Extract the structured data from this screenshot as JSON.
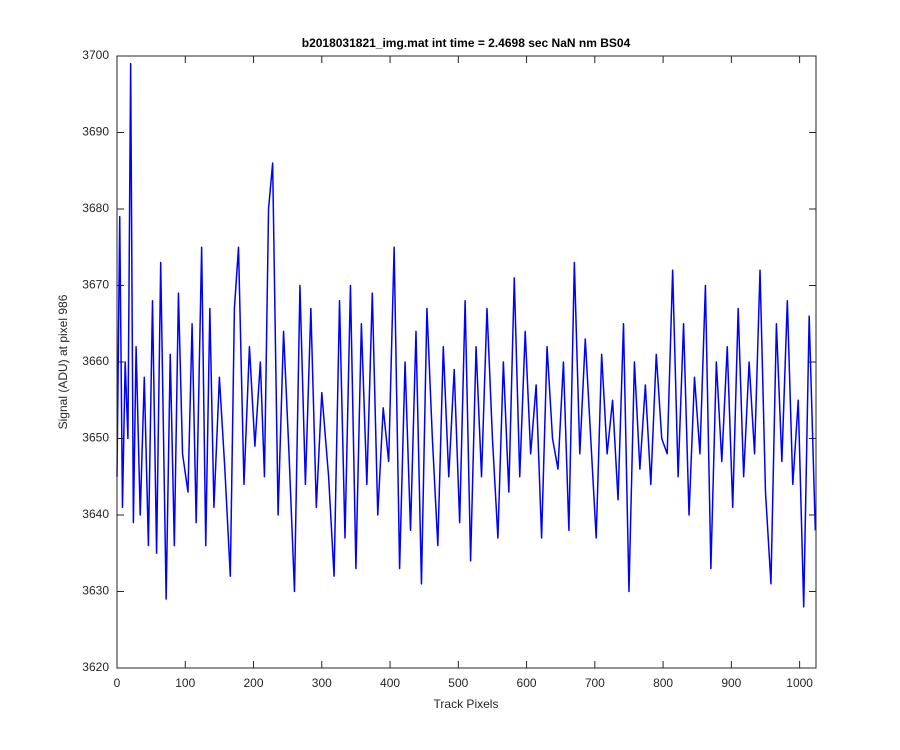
{
  "chart_data": {
    "type": "line",
    "title": "b2018031821_img.mat int time = 2.4698 sec  NaN nm BS04",
    "x_label": "Track Pixels",
    "y_label": "Signal (ADU) at pixel 986",
    "xlim": [
      0,
      1024
    ],
    "ylim": [
      3620,
      3700
    ],
    "xticks": [
      0,
      100,
      200,
      300,
      400,
      500,
      600,
      700,
      800,
      900,
      1000
    ],
    "yticks": [
      3620,
      3630,
      3640,
      3650,
      3660,
      3670,
      3680,
      3690,
      3700
    ],
    "grid": false,
    "series": [
      {
        "color": "#0000ff",
        "x": [
          0,
          4,
          8,
          12,
          16,
          20,
          24,
          28,
          34,
          40,
          46,
          52,
          58,
          64,
          72,
          78,
          84,
          90,
          96,
          104,
          110,
          116,
          124,
          130,
          136,
          142,
          150,
          158,
          166,
          172,
          178,
          186,
          194,
          202,
          210,
          216,
          222,
          228,
          236,
          244,
          252,
          260,
          268,
          276,
          284,
          292,
          300,
          310,
          318,
          326,
          334,
          342,
          350,
          358,
          366,
          374,
          382,
          390,
          398,
          406,
          414,
          422,
          430,
          438,
          446,
          454,
          462,
          470,
          478,
          486,
          494,
          502,
          510,
          518,
          526,
          534,
          542,
          550,
          558,
          566,
          574,
          582,
          590,
          598,
          606,
          614,
          622,
          630,
          638,
          646,
          654,
          662,
          670,
          678,
          686,
          694,
          702,
          710,
          718,
          726,
          734,
          742,
          750,
          758,
          766,
          774,
          782,
          790,
          798,
          806,
          814,
          822,
          830,
          838,
          846,
          854,
          862,
          870,
          878,
          886,
          894,
          902,
          910,
          918,
          926,
          934,
          942,
          950,
          958,
          966,
          974,
          982,
          990,
          998,
          1006,
          1014,
          1023
        ],
        "values": [
          3645,
          3679,
          3641,
          3660,
          3650,
          3699,
          3639,
          3662,
          3640,
          3658,
          3636,
          3668,
          3635,
          3673,
          3629,
          3661,
          3636,
          3669,
          3648,
          3643,
          3665,
          3639,
          3675,
          3636,
          3667,
          3641,
          3658,
          3646,
          3632,
          3667,
          3675,
          3644,
          3662,
          3649,
          3660,
          3645,
          3680,
          3686,
          3640,
          3664,
          3648,
          3630,
          3670,
          3644,
          3667,
          3641,
          3656,
          3645,
          3632,
          3668,
          3637,
          3670,
          3633,
          3665,
          3644,
          3669,
          3640,
          3654,
          3647,
          3675,
          3633,
          3660,
          3638,
          3664,
          3631,
          3667,
          3650,
          3636,
          3662,
          3645,
          3659,
          3639,
          3668,
          3634,
          3662,
          3645,
          3667,
          3650,
          3637,
          3660,
          3643,
          3671,
          3645,
          3664,
          3648,
          3657,
          3637,
          3662,
          3650,
          3646,
          3660,
          3638,
          3673,
          3648,
          3663,
          3650,
          3637,
          3661,
          3648,
          3655,
          3642,
          3665,
          3630,
          3660,
          3646,
          3657,
          3644,
          3661,
          3650,
          3648,
          3672,
          3645,
          3665,
          3640,
          3658,
          3648,
          3670,
          3633,
          3660,
          3647,
          3662,
          3641,
          3667,
          3645,
          3660,
          3648,
          3672,
          3643,
          3631,
          3665,
          3647,
          3668,
          3644,
          3655,
          3628,
          3666,
          3638
        ]
      }
    ]
  }
}
